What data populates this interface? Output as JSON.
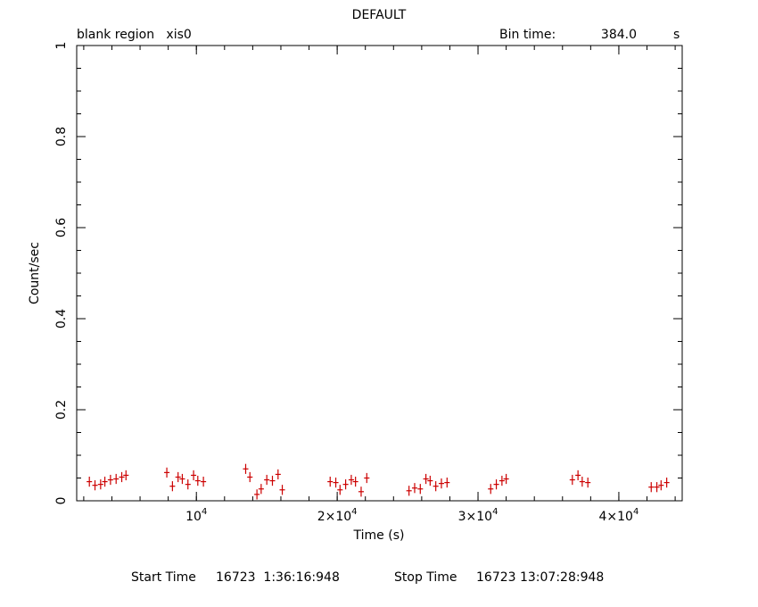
{
  "chart_data": {
    "type": "scatter",
    "title": "DEFAULT",
    "subtitle_left": "blank region   xis0",
    "bin_time_label": "Bin time:",
    "bin_time_value": "384.0",
    "bin_time_unit": "s",
    "xlabel": "Time (s)",
    "ylabel": "Count/sec",
    "xlim": [
      1500,
      44500
    ],
    "ylim": [
      0,
      1
    ],
    "y_ticks": [
      0,
      0.2,
      0.4,
      0.6,
      0.8,
      1
    ],
    "y_tick_labels": [
      "0",
      "0.2",
      "0.4",
      "0.6",
      "0.8",
      "1"
    ],
    "x_ticks": [
      10000,
      20000,
      30000,
      40000
    ],
    "x_tick_labels": [
      {
        "base": "10",
        "exp": "4"
      },
      {
        "base": "2×10",
        "exp": "4"
      },
      {
        "base": "3×10",
        "exp": "4"
      },
      {
        "base": "4×10",
        "exp": "4"
      }
    ],
    "x_minor_step": 2000,
    "y_minor_step": 0.05,
    "bin_width": 384,
    "series": [
      {
        "color": "#cc0000",
        "x": [
          2400,
          2800,
          3200,
          3500,
          3900,
          4300,
          4700,
          5000,
          7900,
          8300,
          8700,
          9000,
          9400,
          9800,
          10100,
          10500,
          13500,
          13800,
          14300,
          14600,
          15000,
          15400,
          15800,
          16100,
          19500,
          19900,
          20200,
          20600,
          21000,
          21300,
          21700,
          22100,
          25100,
          25500,
          25900,
          26300,
          26600,
          27000,
          27400,
          27800,
          30900,
          31300,
          31700,
          32000,
          36700,
          37100,
          37400,
          37800,
          42300,
          42700,
          43000,
          43400
        ],
        "y": [
          0.042,
          0.034,
          0.036,
          0.042,
          0.046,
          0.048,
          0.052,
          0.056,
          0.062,
          0.032,
          0.052,
          0.048,
          0.036,
          0.056,
          0.044,
          0.042,
          0.07,
          0.052,
          0.014,
          0.026,
          0.046,
          0.044,
          0.058,
          0.024,
          0.042,
          0.04,
          0.024,
          0.036,
          0.046,
          0.042,
          0.02,
          0.05,
          0.022,
          0.028,
          0.026,
          0.048,
          0.044,
          0.032,
          0.038,
          0.04,
          0.026,
          0.036,
          0.044,
          0.048,
          0.046,
          0.056,
          0.042,
          0.04,
          0.03,
          0.03,
          0.034,
          0.04
        ],
        "yerr": 0.011
      }
    ]
  },
  "footer": {
    "start_label": "Start Time",
    "start_value": "16723  1:36:16:948",
    "stop_label": "Stop Time",
    "stop_value": "16723 13:07:28:948"
  }
}
